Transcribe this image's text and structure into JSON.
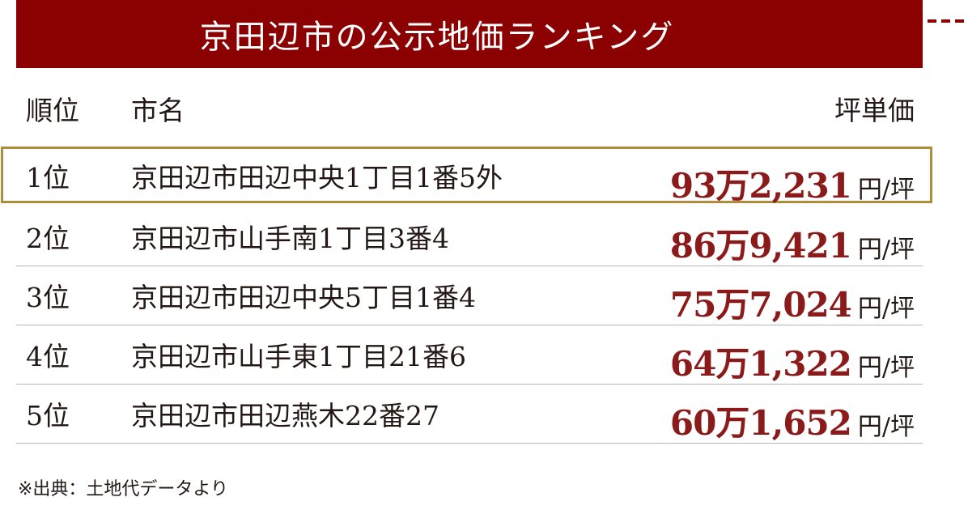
{
  "banner": {
    "title": "京田辺市の公示地価ランキング"
  },
  "table": {
    "headers": {
      "rank": "順位",
      "name": "市名",
      "price": "坪単価"
    },
    "rows": [
      {
        "rank": "1位",
        "address": "京田辺市田辺中央1丁目1番5外",
        "price": "93万2,231",
        "unit": "円/坪",
        "highlight": true
      },
      {
        "rank": "2位",
        "address": "京田辺市山手南1丁目3番4",
        "price": "86万9,421",
        "unit": "円/坪",
        "highlight": false
      },
      {
        "rank": "3位",
        "address": "京田辺市田辺中央5丁目1番4",
        "price": "75万7,024",
        "unit": "円/坪",
        "highlight": false
      },
      {
        "rank": "4位",
        "address": "京田辺市山手東1丁目21番6",
        "price": "64万1,322",
        "unit": "円/坪",
        "highlight": false
      },
      {
        "rank": "5位",
        "address": "京田辺市田辺燕木22番27",
        "price": "60万1,652",
        "unit": "円/坪",
        "highlight": false
      }
    ]
  },
  "footnote": "※出典：土地代データより",
  "colors": {
    "banner": "#8b0000",
    "price": "#8b1a1a",
    "highlight_border": "#b08d3c"
  }
}
